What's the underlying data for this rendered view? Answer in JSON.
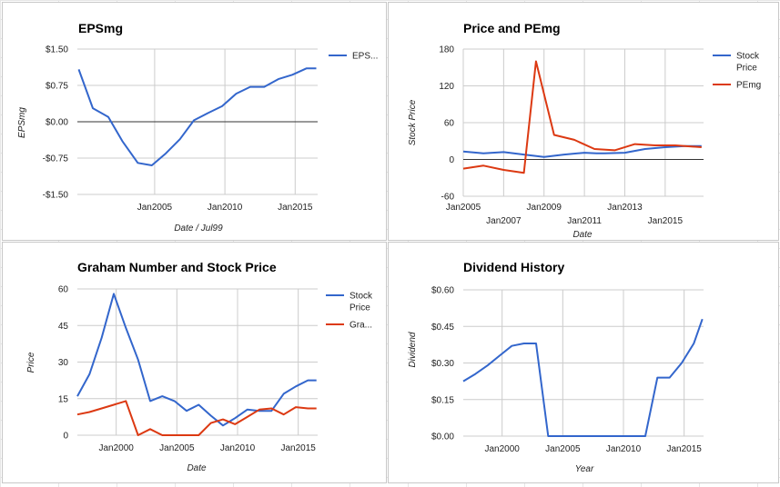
{
  "colors": {
    "blue": "#3366cc",
    "red": "#dc3912",
    "grid": "#cccccc",
    "zero": "#333333"
  },
  "chart_data": [
    {
      "id": "epsmg",
      "type": "line",
      "title": "EPSmg",
      "xlabel": "Date / Jul99",
      "ylabel": "EPSmg",
      "xlim": [
        1999.5,
        2016.6
      ],
      "ylim": [
        -1.5,
        1.5
      ],
      "yticks": [
        {
          "value": 1.5,
          "label": "$1.50"
        },
        {
          "value": 0.75,
          "label": "$0.75"
        },
        {
          "value": 0,
          "label": "$0.00"
        },
        {
          "value": -0.75,
          "label": "-$0.75"
        },
        {
          "value": -1.5,
          "label": "-$1.50"
        }
      ],
      "xticks": [
        {
          "value": 2005,
          "label": "Jan2005",
          "row": 0
        },
        {
          "value": 2010,
          "label": "Jan2010",
          "row": 0
        },
        {
          "value": 2015,
          "label": "Jan2015",
          "row": 0
        }
      ],
      "zero_line": true,
      "legend": "right",
      "series": [
        {
          "name": "EPS...",
          "color": "#3366cc",
          "x": [
            1999.6,
            2000.6,
            2001.7,
            2002.7,
            2003.8,
            2004.8,
            2005.8,
            2006.8,
            2007.8,
            2008.8,
            2009.8,
            2010.8,
            2011.8,
            2012.8,
            2013.8,
            2014.8,
            2015.8,
            2016.5
          ],
          "y": [
            1.08,
            0.28,
            0.1,
            -0.4,
            -0.85,
            -0.9,
            -0.65,
            -0.36,
            0.03,
            0.18,
            0.32,
            0.58,
            0.72,
            0.72,
            0.88,
            0.97,
            1.1,
            1.1
          ]
        }
      ]
    },
    {
      "id": "price-pemg",
      "type": "line",
      "title": "Price and PEmg",
      "xlabel": "Date",
      "ylabel": "Stock Price",
      "xlim": [
        2005.0,
        2016.9
      ],
      "ylim": [
        -60,
        180
      ],
      "yticks": [
        {
          "value": 180,
          "label": "180"
        },
        {
          "value": 120,
          "label": "120"
        },
        {
          "value": 60,
          "label": "60"
        },
        {
          "value": 0,
          "label": "0"
        },
        {
          "value": -60,
          "label": "-60"
        }
      ],
      "xticks": [
        {
          "value": 2005,
          "label": "Jan2005",
          "row": 0
        },
        {
          "value": 2007,
          "label": "Jan2007",
          "row": 1
        },
        {
          "value": 2009,
          "label": "Jan2009",
          "row": 0
        },
        {
          "value": 2011,
          "label": "Jan2011",
          "row": 1
        },
        {
          "value": 2013,
          "label": "Jan2013",
          "row": 0
        },
        {
          "value": 2015,
          "label": "Jan2015",
          "row": 1
        }
      ],
      "zero_line": true,
      "legend": "right",
      "series": [
        {
          "name": "Stock Price",
          "color": "#3366cc",
          "x": [
            2005.0,
            2006.0,
            2007.0,
            2008.0,
            2009.0,
            2010.0,
            2011.0,
            2011.6,
            2012.0,
            2013.0,
            2014.0,
            2015.0,
            2016.0,
            2016.8
          ],
          "y": [
            13,
            10,
            12,
            8,
            4,
            8,
            11,
            10,
            10,
            11,
            17,
            20,
            22,
            22
          ]
        },
        {
          "name": "PEmg",
          "color": "#dc3912",
          "x": [
            2005.0,
            2006.0,
            2007.0,
            2008.0,
            2008.6,
            2009.5,
            2010.5,
            2011.5,
            2012.5,
            2013.5,
            2014.5,
            2015.5,
            2016.8
          ],
          "y": [
            -15,
            -10,
            -17,
            -22,
            160,
            40,
            32,
            17,
            15,
            25,
            23,
            23,
            20
          ]
        }
      ]
    },
    {
      "id": "graham",
      "type": "line",
      "title": "Graham Number and Stock Price",
      "xlabel": "Date",
      "ylabel": "Price",
      "xlim": [
        1996.8,
        2016.6
      ],
      "ylim": [
        0,
        60
      ],
      "yticks": [
        {
          "value": 60,
          "label": "60"
        },
        {
          "value": 45,
          "label": "45"
        },
        {
          "value": 30,
          "label": "30"
        },
        {
          "value": 15,
          "label": "15"
        },
        {
          "value": 0,
          "label": "0"
        }
      ],
      "xticks": [
        {
          "value": 2000,
          "label": "Jan2000",
          "row": 0
        },
        {
          "value": 2005,
          "label": "Jan2005",
          "row": 0
        },
        {
          "value": 2010,
          "label": "Jan2010",
          "row": 0
        },
        {
          "value": 2015,
          "label": "Jan2015",
          "row": 0
        }
      ],
      "zero_line": false,
      "legend": "right",
      "series": [
        {
          "name": "Stock Price",
          "color": "#3366cc",
          "x": [
            1996.8,
            1997.8,
            1998.8,
            1999.8,
            2000.8,
            2001.8,
            2002.8,
            2003.8,
            2004.8,
            2005.8,
            2006.8,
            2007.8,
            2008.8,
            2009.8,
            2010.8,
            2011.8,
            2012.8,
            2013.8,
            2014.8,
            2015.8,
            2016.5
          ],
          "y": [
            16,
            25,
            40,
            58,
            44,
            31,
            14,
            16,
            14,
            10,
            12.5,
            8,
            4,
            7,
            10.5,
            10,
            10,
            17,
            20,
            22.5,
            22.5
          ]
        },
        {
          "name": "Gra...",
          "color": "#dc3912",
          "x": [
            1996.8,
            1997.8,
            1998.8,
            1999.8,
            2000.8,
            2001.8,
            2002.8,
            2003.8,
            2004.8,
            2005.8,
            2006.8,
            2007.8,
            2008.8,
            2009.8,
            2010.8,
            2011.8,
            2012.8,
            2013.8,
            2014.8,
            2015.8,
            2016.5
          ],
          "y": [
            8.5,
            9.5,
            11,
            12.5,
            14,
            0,
            2.5,
            0,
            0,
            0,
            0,
            5,
            6.5,
            4.5,
            7.5,
            10.5,
            11,
            8.5,
            11.5,
            11,
            11
          ]
        }
      ]
    },
    {
      "id": "dividend",
      "type": "line",
      "title": "Dividend History",
      "xlabel": "Year",
      "ylabel": "Dividend",
      "xlim": [
        1996.8,
        2016.6
      ],
      "ylim": [
        0,
        0.6
      ],
      "yticks": [
        {
          "value": 0.6,
          "label": "$0.60"
        },
        {
          "value": 0.45,
          "label": "$0.45"
        },
        {
          "value": 0.3,
          "label": "$0.30"
        },
        {
          "value": 0.15,
          "label": "$0.15"
        },
        {
          "value": 0,
          "label": "$0.00"
        }
      ],
      "xticks": [
        {
          "value": 2000,
          "label": "Jan2000",
          "row": 0
        },
        {
          "value": 2005,
          "label": "Jan2005",
          "row": 0
        },
        {
          "value": 2010,
          "label": "Jan2010",
          "row": 0
        },
        {
          "value": 2015,
          "label": "Jan2015",
          "row": 0
        }
      ],
      "zero_line": false,
      "legend": "none",
      "series": [
        {
          "name": "",
          "color": "#3366cc",
          "x": [
            1996.8,
            1997.8,
            1998.8,
            1999.8,
            2000.8,
            2001.8,
            2002.8,
            2003.8,
            2004.8,
            2005.8,
            2006.8,
            2007.8,
            2008.8,
            2009.8,
            2010.8,
            2011.8,
            2012.8,
            2013.8,
            2014.8,
            2015.8,
            2016.5
          ],
          "y": [
            0.225,
            0.255,
            0.29,
            0.33,
            0.37,
            0.38,
            0.38,
            0.0,
            0.0,
            0.0,
            0.0,
            0.0,
            0.0,
            0.0,
            0.0,
            0.0,
            0.24,
            0.24,
            0.3,
            0.38,
            0.48
          ]
        }
      ]
    }
  ]
}
